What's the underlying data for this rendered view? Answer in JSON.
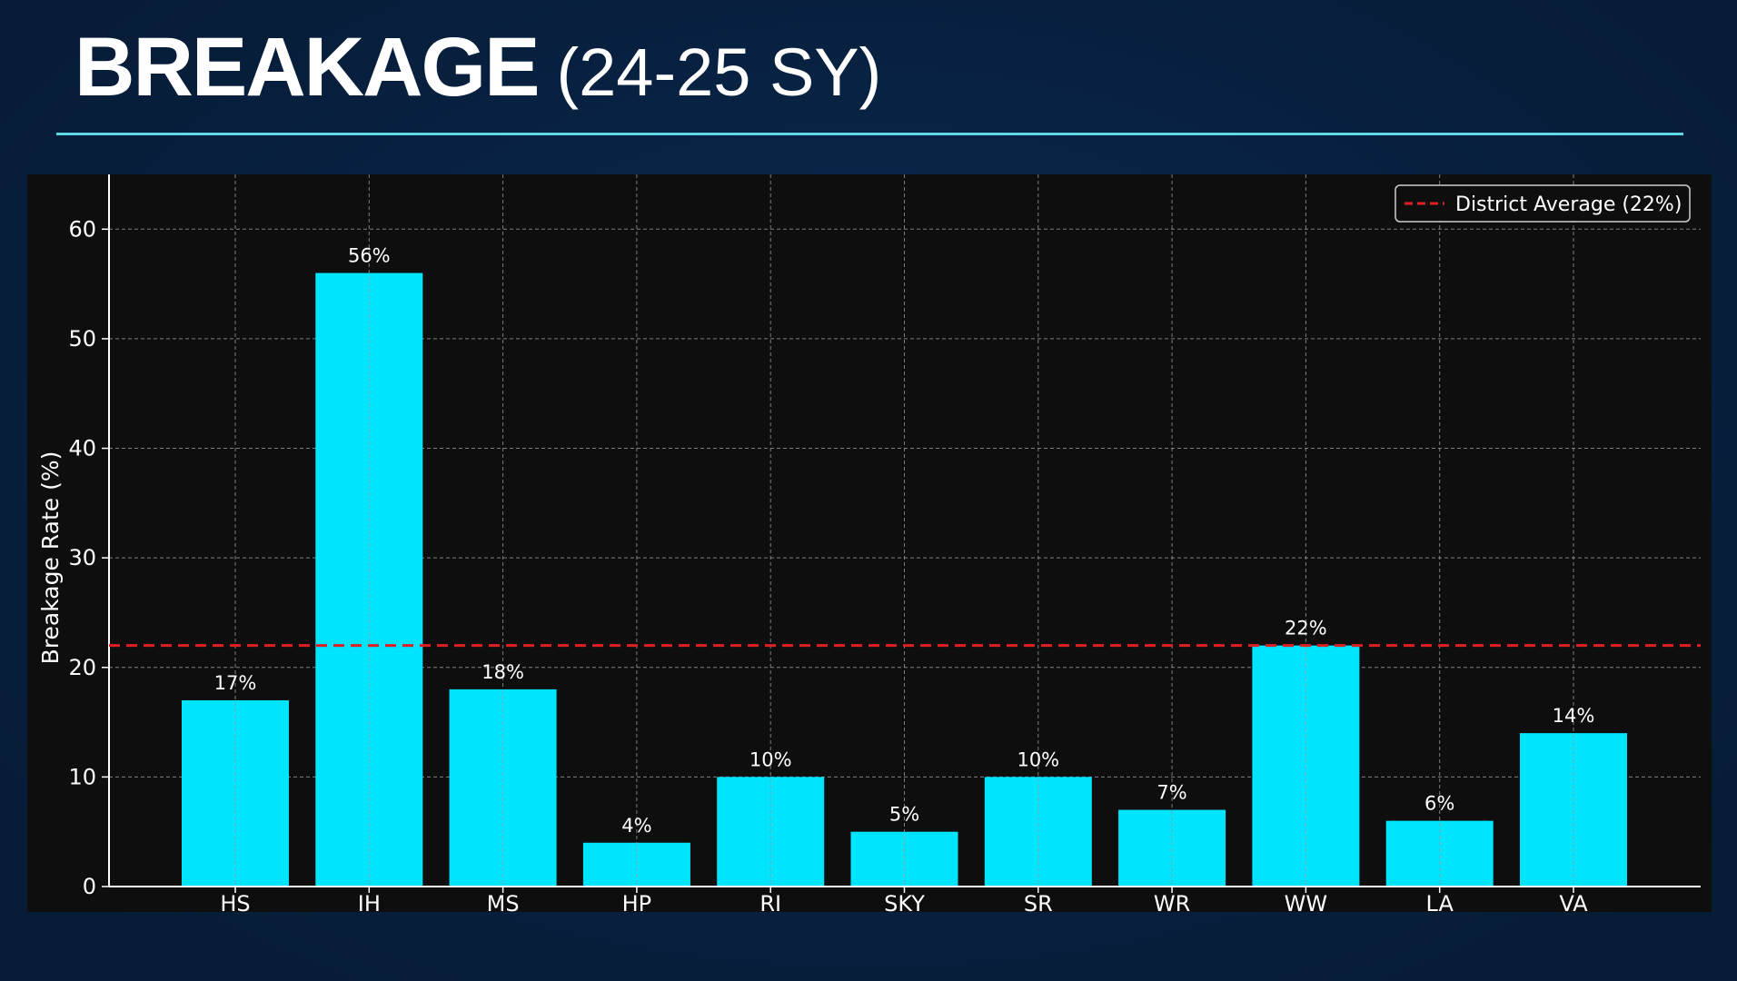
{
  "title": {
    "main": "BREAKAGE",
    "sub": "(24-25 SY)"
  },
  "colors": {
    "bar": "#00e5ff",
    "average_line": "#e02020",
    "grid": "#9a9a9a",
    "panel": "#0e0e0e"
  },
  "chart_data": {
    "type": "bar",
    "categories": [
      "HS",
      "IH",
      "MS",
      "HP",
      "RI",
      "SKY",
      "SR",
      "WR",
      "WW",
      "LA",
      "VA"
    ],
    "series": [
      {
        "values": [
          17,
          56,
          18,
          4,
          10,
          5,
          10,
          7,
          22,
          6,
          14
        ],
        "labels": [
          "17%",
          "56%",
          "18%",
          "4%",
          "10%",
          "5%",
          "10%",
          "7%",
          "22%",
          "6%",
          "14%"
        ]
      }
    ],
    "reference_line": {
      "name": "District Average (22%)",
      "value": 22,
      "style": "dashed"
    },
    "xlabel": "",
    "ylabel": "Breakage Rate (%)",
    "ylim": [
      0,
      65
    ],
    "yticks": [
      0,
      10,
      20,
      30,
      40,
      50,
      60
    ],
    "grid": true,
    "legend": "top-right"
  }
}
